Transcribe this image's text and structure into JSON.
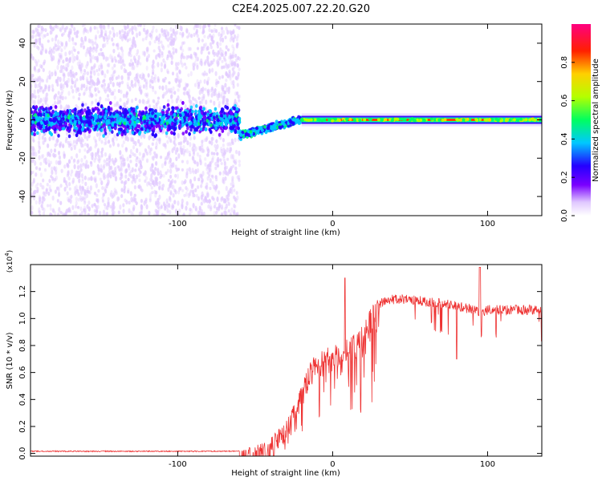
{
  "title": "C2E4.2025.007.22.20.G20",
  "chart_data": [
    {
      "type": "heatmap",
      "xlabel": "Height of straight line (km)",
      "ylabel": "Frequency (Hz)",
      "xlim": [
        -195,
        135
      ],
      "ylim": [
        -50,
        50
      ],
      "xticks": [
        -100,
        0,
        100
      ],
      "xtick_labels": [
        "-100",
        "0",
        "100"
      ],
      "yticks": [
        -40,
        -20,
        0,
        20,
        40
      ],
      "ytick_labels": [
        "-40",
        "-20",
        "0",
        "20",
        "40"
      ],
      "description_points": {
        "noise_region_x": [
          -195,
          -60
        ],
        "noise_band_center_hz": 0,
        "noise_band_halfwidth_hz": 10,
        "transition_x": [
          -60,
          -20
        ],
        "transition_freq_hz": [
          -8,
          0
        ],
        "signal_line_x": [
          -20,
          135
        ],
        "signal_line_freq_hz": 0
      },
      "colorbar": {
        "label": "Normalized spectral amplitude",
        "range": [
          0,
          1
        ],
        "ticks": [
          0.0,
          0.2,
          0.4,
          0.6,
          0.8
        ],
        "tick_labels": [
          "0.0",
          "0.2",
          "0.4",
          "0.6",
          "0.8"
        ],
        "colors": [
          "#ffffff",
          "#d9b8ff",
          "#7a00ff",
          "#2400ff",
          "#00c8ff",
          "#00ff60",
          "#b4ff00",
          "#ffd000",
          "#ff2000",
          "#ff0080"
        ]
      }
    },
    {
      "type": "line",
      "xlabel": "Height of straight line (km)",
      "ylabel": "SNR (10 * v/v)",
      "yscale_label": "(x10",
      "yscale_exp": "4",
      "yscale_close": ")",
      "xlim": [
        -195,
        135
      ],
      "ylim": [
        -0.02,
        1.4
      ],
      "xticks": [
        -100,
        0,
        100
      ],
      "xtick_labels": [
        "-100",
        "0",
        "100"
      ],
      "yticks": [
        0.0,
        0.2,
        0.4,
        0.6,
        0.8,
        1.0,
        1.2
      ],
      "ytick_labels": [
        "0.0",
        "0.2",
        "0.4",
        "0.6",
        "0.8",
        "1.0",
        "1.2"
      ],
      "color": "#ee3333",
      "series": [
        {
          "x": [
            -195,
            -100,
            -60,
            -50,
            -40,
            -30,
            -20,
            -15,
            -10,
            0,
            10,
            20,
            25,
            30,
            40,
            50,
            60,
            70,
            80,
            90,
            95,
            100,
            110,
            120,
            135
          ],
          "values": [
            0.02,
            0.02,
            0.02,
            0.06,
            0.12,
            0.25,
            0.5,
            0.7,
            0.75,
            0.8,
            0.85,
            0.95,
            1.1,
            1.15,
            1.18,
            1.18,
            1.16,
            1.15,
            1.13,
            1.1,
            1.08,
            1.1,
            1.1,
            1.1,
            1.1
          ]
        }
      ]
    }
  ]
}
